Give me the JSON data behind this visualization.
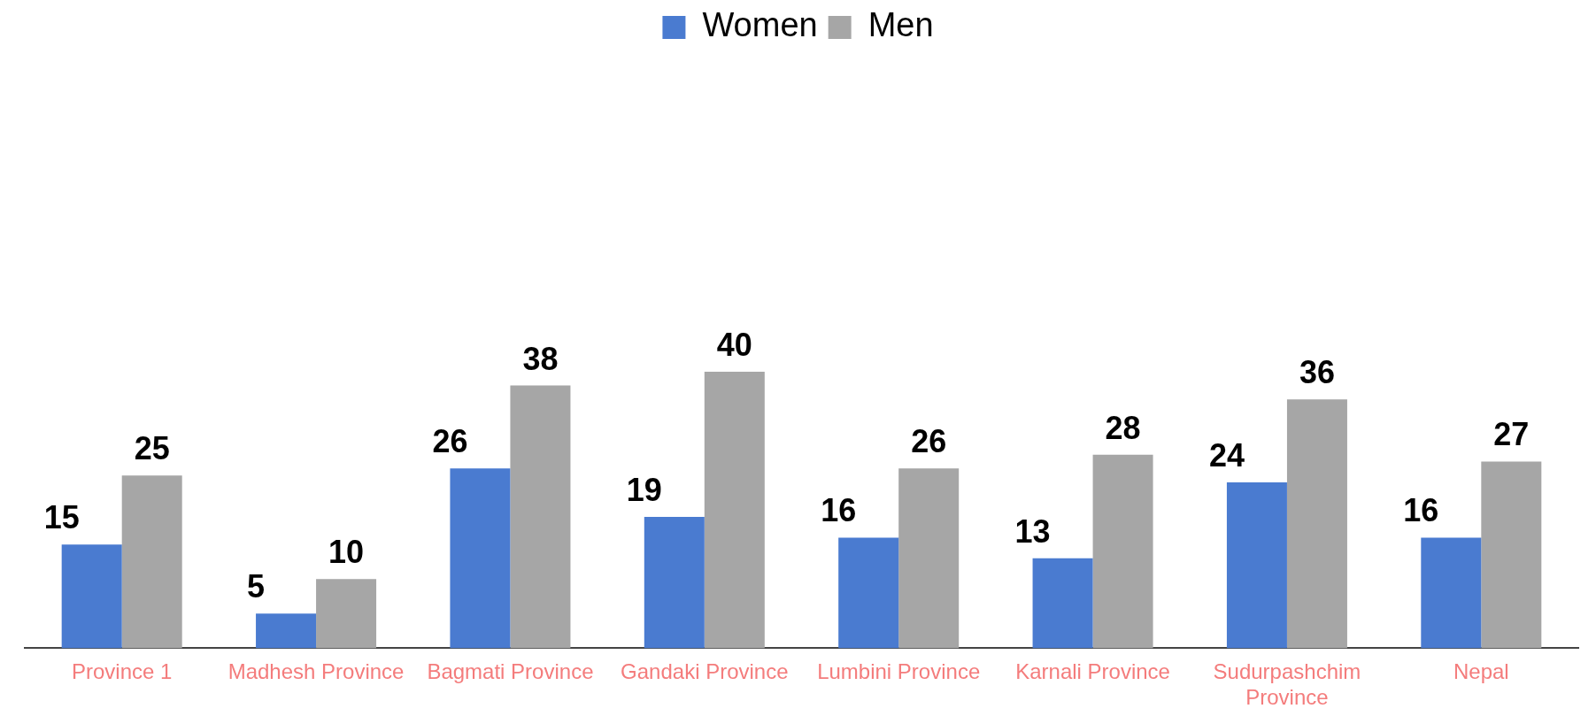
{
  "chart_data": {
    "type": "bar",
    "categories": [
      "Province 1",
      "Madhesh Province",
      "Bagmati Province",
      "Gandaki Province",
      "Lumbini Province",
      "Karnali Province",
      "Sudurpashchim Province",
      "Nepal"
    ],
    "series": [
      {
        "name": "Women",
        "color": "#4a7bd0",
        "values": [
          15,
          5,
          26,
          19,
          16,
          13,
          24,
          16
        ]
      },
      {
        "name": "Men",
        "color": "#a6a6a6",
        "values": [
          25,
          10,
          38,
          40,
          26,
          28,
          36,
          27
        ]
      }
    ],
    "tick_labels": "x",
    "grid": false,
    "legend": "top",
    "data_labels": true
  }
}
